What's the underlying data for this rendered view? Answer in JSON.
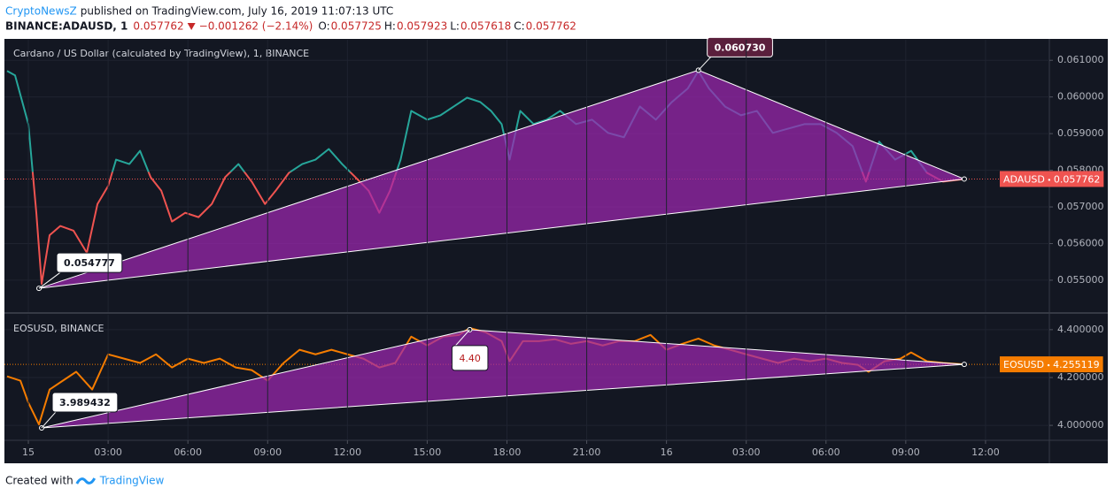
{
  "header": {
    "author": "CryptoNewsZ",
    "published": "published on TradingView.com, July 16, 2019 11:07:13 UTC",
    "symbol": "BINANCE:ADAUSD, 1",
    "price": "0.057762",
    "change": "−0.001262 (−2.14%)",
    "ohlc": [
      {
        "label": "O:",
        "value": "0.057725"
      },
      {
        "label": "H:",
        "value": "0.057923"
      },
      {
        "label": "L:",
        "value": "0.057618"
      },
      {
        "label": "C:",
        "value": "0.057762"
      }
    ]
  },
  "footer": {
    "text": "Created with",
    "brand": "TradingView"
  },
  "chart_data": [
    {
      "type": "line",
      "title": "Cardano / US Dollar (calculated by TradingView), 1, BINANCE",
      "xlim": [
        -0.9,
        38.4
      ],
      "ylim": [
        0.05413,
        0.06156
      ],
      "yticks": [
        {
          "value": 0.055,
          "label": "0.055000"
        },
        {
          "value": 0.056,
          "label": "0.056000"
        },
        {
          "value": 0.057,
          "label": "0.057000"
        },
        {
          "value": 0.058,
          "label": "0.058000"
        },
        {
          "value": 0.059,
          "label": "0.059000"
        },
        {
          "value": 0.06,
          "label": "0.060000"
        },
        {
          "value": 0.061,
          "label": "0.061000"
        }
      ],
      "grid": true,
      "baseline": 0.05795,
      "up_color": "#26a69a",
      "down_color": "#ef5350",
      "x": [
        -0.8,
        -0.5,
        0,
        0.3,
        0.5,
        0.8,
        1.2,
        1.7,
        2.2,
        2.6,
        3.0,
        3.3,
        3.8,
        4.2,
        4.6,
        5.0,
        5.4,
        5.9,
        6.4,
        6.9,
        7.4,
        7.9,
        8.4,
        8.9,
        9.3,
        9.8,
        10.3,
        10.8,
        11.3,
        11.8,
        12.3,
        12.8,
        13.2,
        13.6,
        14.0,
        14.4,
        15.0,
        15.5,
        16.0,
        16.5,
        17.0,
        17.4,
        17.8,
        18.1,
        18.5,
        19.0,
        19.5,
        20.0,
        20.6,
        21.2,
        21.8,
        22.4,
        23.0,
        23.6,
        24.2,
        24.8,
        25.2,
        25.6,
        26.2,
        26.8,
        27.4,
        28.0,
        28.6,
        29.2,
        29.8,
        30.4,
        31.0,
        31.5,
        32.0,
        32.6,
        33.2,
        33.8,
        34.4,
        35.2
      ],
      "values": [
        0.06071,
        0.06059,
        0.05926,
        0.05684,
        0.0549,
        0.05623,
        0.05648,
        0.05635,
        0.05575,
        0.05708,
        0.05757,
        0.05829,
        0.05817,
        0.05853,
        0.05781,
        0.05744,
        0.0566,
        0.05684,
        0.05672,
        0.05708,
        0.05781,
        0.05817,
        0.05769,
        0.05708,
        0.05744,
        0.05793,
        0.05817,
        0.05829,
        0.05858,
        0.05817,
        0.05781,
        0.05744,
        0.05684,
        0.05744,
        0.05829,
        0.05962,
        0.05938,
        0.0595,
        0.05974,
        0.05998,
        0.05986,
        0.05962,
        0.05926,
        0.05829,
        0.05962,
        0.05926,
        0.05938,
        0.05962,
        0.05926,
        0.05938,
        0.05902,
        0.0589,
        0.05974,
        0.05938,
        0.05986,
        0.06023,
        0.06071,
        0.06023,
        0.05974,
        0.0595,
        0.05962,
        0.05902,
        0.05914,
        0.05926,
        0.05926,
        0.05902,
        0.05866,
        0.05769,
        0.05878,
        0.05829,
        0.05853,
        0.05793,
        0.05769,
        0.05776
      ],
      "triangle": {
        "x": [
          0.4,
          25.2,
          35.2
        ],
        "y": [
          0.054777,
          0.06073,
          0.057762
        ],
        "labels": [
          "0.054777",
          "0.060730",
          null
        ],
        "color": "#9c27b0"
      },
      "last": {
        "name": "ADAUSD",
        "value": 0.057762,
        "color": "#ef5350"
      }
    },
    {
      "type": "line",
      "title": "EOSUSD, BINANCE",
      "xlim": [
        -0.9,
        38.4
      ],
      "xticks": [
        {
          "value": 0,
          "label": "15"
        },
        {
          "value": 3,
          "label": "03:00"
        },
        {
          "value": 6,
          "label": "06:00"
        },
        {
          "value": 9,
          "label": "09:00"
        },
        {
          "value": 12,
          "label": "12:00"
        },
        {
          "value": 15,
          "label": "15:00"
        },
        {
          "value": 18,
          "label": "18:00"
        },
        {
          "value": 21,
          "label": "21:00"
        },
        {
          "value": 24,
          "label": "16"
        },
        {
          "value": 27,
          "label": "03:00"
        },
        {
          "value": 30,
          "label": "06:00"
        },
        {
          "value": 33,
          "label": "09:00"
        },
        {
          "value": 36,
          "label": "12:00"
        }
      ],
      "ylim": [
        3.9413,
        4.4624
      ],
      "yticks": [
        {
          "value": 4.0,
          "label": "4.000000"
        },
        {
          "value": 4.2,
          "label": "4.200000"
        },
        {
          "value": 4.4,
          "label": "4.400000"
        }
      ],
      "grid": true,
      "color": "#f57c00",
      "x": [
        -0.8,
        -0.3,
        0,
        0.4,
        0.8,
        1.3,
        1.8,
        2.4,
        3.0,
        3.6,
        4.2,
        4.8,
        5.4,
        6.0,
        6.6,
        7.2,
        7.8,
        8.4,
        9.0,
        9.6,
        10.2,
        10.8,
        11.4,
        12.0,
        12.6,
        13.2,
        13.8,
        14.4,
        15.0,
        15.6,
        16.2,
        16.6,
        17.2,
        17.8,
        18.1,
        18.6,
        19.2,
        19.8,
        20.4,
        21.0,
        21.6,
        22.2,
        22.8,
        23.4,
        24.0,
        24.6,
        25.2,
        25.8,
        26.4,
        27.0,
        27.6,
        28.2,
        28.8,
        29.4,
        30.0,
        30.6,
        31.2,
        31.6,
        32.2,
        32.8,
        33.2,
        33.8,
        34.4,
        35.2
      ],
      "values": [
        4.205,
        4.187,
        4.095,
        4.004,
        4.15,
        4.187,
        4.224,
        4.15,
        4.297,
        4.279,
        4.261,
        4.297,
        4.242,
        4.279,
        4.261,
        4.279,
        4.242,
        4.231,
        4.187,
        4.261,
        4.316,
        4.297,
        4.316,
        4.297,
        4.279,
        4.242,
        4.261,
        4.371,
        4.334,
        4.371,
        4.378,
        4.407,
        4.389,
        4.352,
        4.268,
        4.352,
        4.352,
        4.36,
        4.341,
        4.352,
        4.334,
        4.352,
        4.352,
        4.378,
        4.316,
        4.341,
        4.363,
        4.334,
        4.316,
        4.297,
        4.279,
        4.261,
        4.279,
        4.268,
        4.279,
        4.261,
        4.253,
        4.224,
        4.268,
        4.279,
        4.305,
        4.268,
        4.261,
        4.255
      ],
      "triangle": {
        "x": [
          0.5,
          16.6,
          35.2
        ],
        "y": [
          3.989432,
          4.4,
          4.255119
        ],
        "labels": [
          "3.989432",
          "4.40",
          null
        ],
        "color": "#9c27b0"
      },
      "last": {
        "name": "EOSUSD",
        "value": 4.255119,
        "color": "#f57c00"
      }
    }
  ]
}
